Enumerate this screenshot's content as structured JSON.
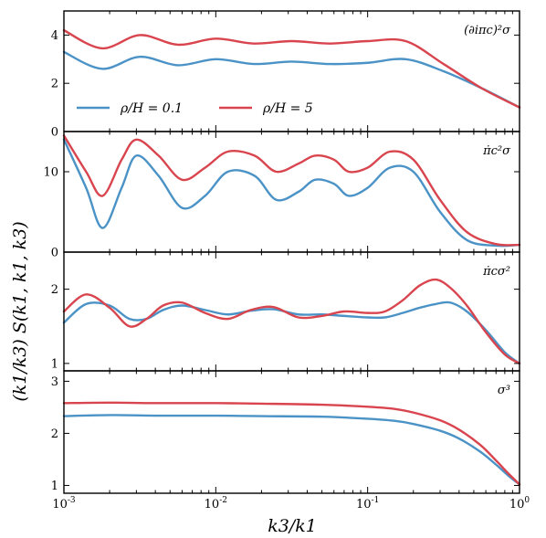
{
  "colors": {
    "blue": "#4b93c6",
    "red": "#d9454e"
  },
  "xlabel": "k3/k1",
  "ylabel": "(k1/k3) S(k1, k1, k3)",
  "xscale": "log",
  "xlim": [
    0.001,
    1
  ],
  "xticks": [
    "10^-3",
    "10^-2",
    "10^-1",
    "10^0"
  ],
  "legend": {
    "placement": "lower-left of top panel",
    "entries": [
      "ρ/H = 0.1",
      "ρ/H = 5"
    ]
  },
  "chart_data": [
    {
      "type": "line",
      "title": "(∂iπc)²σ",
      "ylim": [
        0,
        5
      ],
      "yticks": [
        "0",
        "2",
        "4"
      ],
      "x": [
        0.001,
        0.00178,
        0.00316,
        0.00562,
        0.01,
        0.0178,
        0.0316,
        0.0562,
        0.1,
        0.178,
        0.316,
        0.562,
        1
      ],
      "series": [
        {
          "name": "ρ/H = 0.1",
          "values": [
            3.3,
            2.6,
            3.1,
            2.75,
            3.0,
            2.8,
            2.9,
            2.8,
            2.85,
            3.0,
            2.5,
            1.8,
            1.0
          ]
        },
        {
          "name": "ρ/H = 5",
          "values": [
            4.2,
            3.45,
            4.0,
            3.6,
            3.85,
            3.65,
            3.75,
            3.65,
            3.75,
            3.75,
            2.8,
            1.8,
            1.0
          ]
        }
      ]
    },
    {
      "type": "line",
      "title": "π̇c²σ",
      "ylim": [
        0,
        15
      ],
      "yticks": [
        "0",
        "10"
      ],
      "x": [
        0.001,
        0.0014,
        0.0018,
        0.0024,
        0.003,
        0.0042,
        0.006,
        0.0085,
        0.012,
        0.018,
        0.025,
        0.035,
        0.045,
        0.06,
        0.075,
        0.1,
        0.14,
        0.2,
        0.3,
        0.45,
        0.7,
        1
      ],
      "series": [
        {
          "name": "ρ/H = 0.1",
          "values": [
            14.0,
            8.0,
            3.0,
            8.0,
            12.0,
            9.5,
            5.5,
            7.0,
            10.0,
            9.5,
            6.5,
            7.5,
            9.0,
            8.5,
            7.0,
            8.0,
            10.5,
            10.0,
            5.0,
            1.5,
            0.8,
            0.9
          ]
        },
        {
          "name": "ρ/H = 5",
          "values": [
            14.5,
            10.0,
            7.0,
            11.5,
            14.0,
            12.0,
            9.0,
            10.5,
            12.5,
            12.0,
            10.0,
            11.0,
            12.0,
            11.5,
            10.0,
            10.5,
            12.5,
            11.5,
            6.5,
            2.5,
            1.0,
            0.9
          ]
        }
      ]
    },
    {
      "type": "line",
      "title": "π̇cσ²",
      "ylim": [
        0.9,
        2.5
      ],
      "yticks": [
        "1",
        "2"
      ],
      "x": [
        0.001,
        0.0014,
        0.002,
        0.0027,
        0.0035,
        0.0045,
        0.006,
        0.0085,
        0.012,
        0.017,
        0.024,
        0.035,
        0.05,
        0.07,
        0.1,
        0.13,
        0.17,
        0.22,
        0.28,
        0.35,
        0.45,
        0.6,
        0.8,
        1
      ],
      "series": [
        {
          "name": "ρ/H = 0.1",
          "values": [
            1.55,
            1.8,
            1.78,
            1.6,
            1.6,
            1.72,
            1.78,
            1.72,
            1.66,
            1.71,
            1.73,
            1.66,
            1.66,
            1.64,
            1.62,
            1.62,
            1.68,
            1.75,
            1.8,
            1.82,
            1.7,
            1.45,
            1.15,
            1.0
          ]
        },
        {
          "name": "ρ/H = 5",
          "values": [
            1.7,
            1.93,
            1.75,
            1.5,
            1.6,
            1.78,
            1.82,
            1.68,
            1.6,
            1.72,
            1.76,
            1.62,
            1.64,
            1.7,
            1.68,
            1.7,
            1.85,
            2.05,
            2.13,
            2.02,
            1.78,
            1.42,
            1.12,
            1.0
          ]
        }
      ]
    },
    {
      "type": "line",
      "title": "σ³",
      "ylim": [
        0.85,
        3.2
      ],
      "yticks": [
        "1",
        "2",
        "3"
      ],
      "x": [
        0.001,
        0.002,
        0.004,
        0.01,
        0.02,
        0.05,
        0.1,
        0.15,
        0.2,
        0.3,
        0.4,
        0.55,
        0.7,
        0.85,
        1
      ],
      "series": [
        {
          "name": "ρ/H = 0.1",
          "values": [
            2.33,
            2.35,
            2.34,
            2.34,
            2.33,
            2.32,
            2.28,
            2.24,
            2.18,
            2.05,
            1.9,
            1.65,
            1.4,
            1.18,
            1.02
          ]
        },
        {
          "name": "ρ/H = 5",
          "values": [
            2.58,
            2.59,
            2.58,
            2.58,
            2.57,
            2.55,
            2.51,
            2.47,
            2.4,
            2.25,
            2.07,
            1.78,
            1.48,
            1.22,
            1.02
          ]
        }
      ]
    }
  ]
}
